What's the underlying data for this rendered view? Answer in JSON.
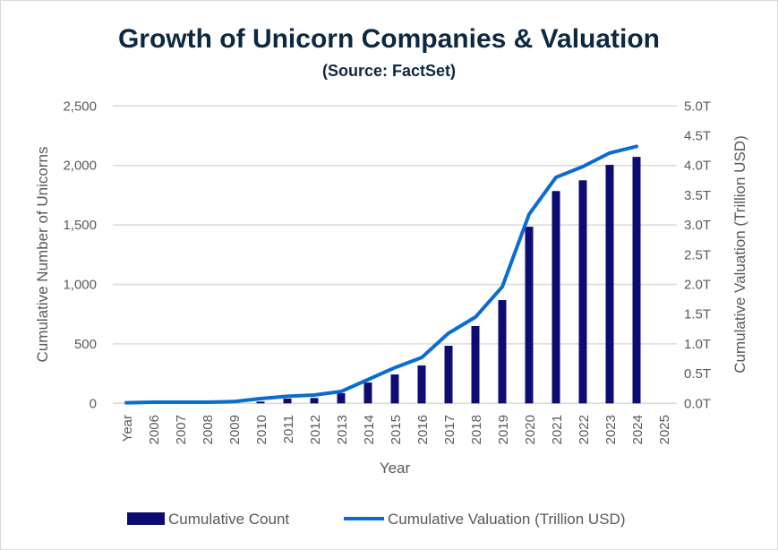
{
  "chart_data": {
    "type": "bar+line",
    "title": "Growth of Unicorn Companies & Valuation",
    "subtitle": "(Source: FactSet)",
    "xlabel": "Year",
    "ylabel": "Cumulative Number of Unicorns",
    "y2label": "Cumulative Valuation (Trillion USD)",
    "categories": [
      "Year",
      "2006",
      "2007",
      "2008",
      "2009",
      "2010",
      "2011",
      "2012",
      "2013",
      "2014",
      "2015",
      "2016",
      "2017",
      "2018",
      "2019",
      "2020",
      "2021",
      "2022",
      "2023",
      "2024",
      "2025"
    ],
    "ylim": [
      0,
      2500
    ],
    "yticks": [
      "0",
      "500",
      "1,000",
      "1,500",
      "2,000",
      "2,500"
    ],
    "y2lim": [
      0,
      5
    ],
    "y2ticks": [
      "0.0T",
      "0.5T",
      "1.0T",
      "1.5T",
      "2.0T",
      "2.5T",
      "3.0T",
      "3.5T",
      "4.0T",
      "4.5T",
      "5.0T"
    ],
    "grid": true,
    "legend_position": "bottom",
    "series": [
      {
        "name": "Cumulative Count",
        "type": "bar",
        "axis": "left",
        "color": "#0c0c73",
        "values": [
          null,
          null,
          null,
          null,
          null,
          15,
          40,
          45,
          85,
          175,
          243,
          319,
          484,
          650,
          868,
          1485,
          1785,
          1875,
          2005,
          2072,
          null
        ]
      },
      {
        "name": "Cumulative Valuation (Trillion USD)",
        "type": "line",
        "axis": "right",
        "color": "#0a6cd0",
        "values": [
          0.01,
          0.02,
          0.02,
          0.02,
          0.03,
          0.08,
          0.12,
          0.14,
          0.2,
          0.4,
          0.6,
          0.77,
          1.18,
          1.45,
          1.96,
          3.18,
          3.8,
          3.98,
          4.21,
          4.32,
          null
        ]
      }
    ]
  }
}
